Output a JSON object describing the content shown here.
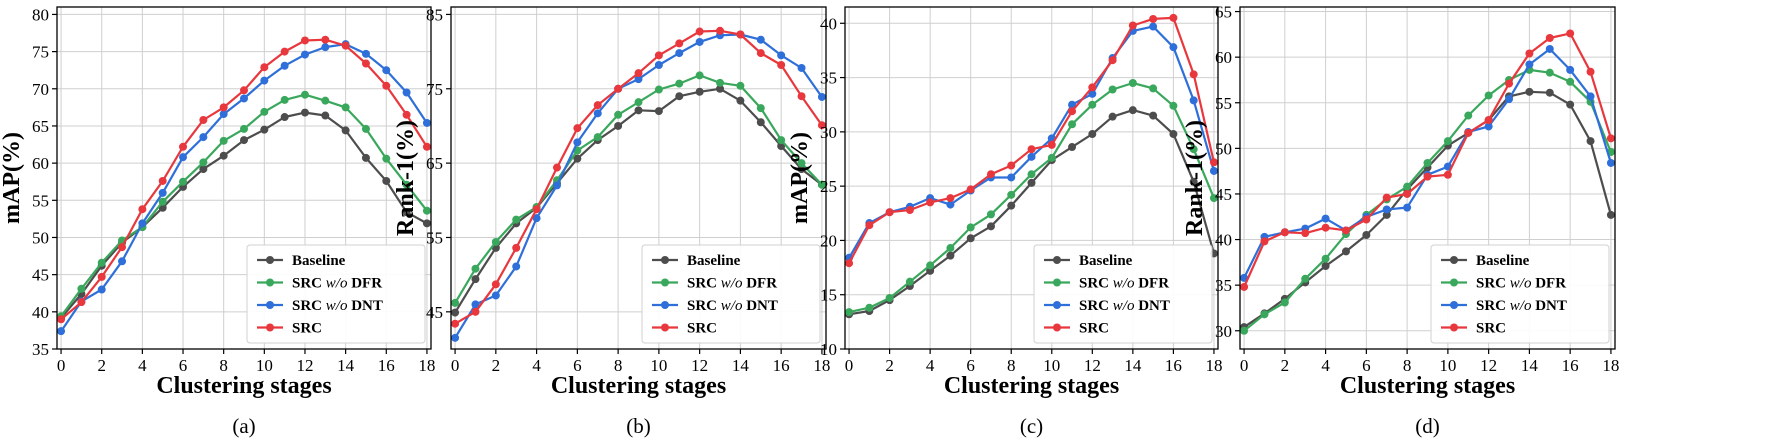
{
  "chart_data": [
    {
      "type": "line",
      "panel_label": "(a)",
      "xlabel": "Clustering stages",
      "ylabel": "mAP(%)",
      "x": [
        0,
        1,
        2,
        3,
        4,
        5,
        6,
        7,
        8,
        9,
        10,
        11,
        12,
        13,
        14,
        15,
        16,
        17,
        18
      ],
      "xticks": [
        0,
        2,
        4,
        6,
        8,
        10,
        12,
        14,
        16,
        18
      ],
      "xlim": [
        -0.2,
        18.2
      ],
      "ylim": [
        35,
        81
      ],
      "yticks": [
        35,
        40,
        45,
        50,
        55,
        60,
        65,
        70,
        75,
        80
      ],
      "grid": true,
      "legend_position": "bottom-right",
      "series": [
        {
          "name": "Baseline",
          "prefix": "Baseline",
          "italic": "",
          "suffix": "",
          "color": "#4d4d4d",
          "values": [
            39.2,
            42.4,
            46.2,
            49.3,
            51.4,
            54.0,
            56.8,
            59.2,
            61.0,
            63.1,
            64.5,
            66.2,
            66.8,
            66.4,
            64.4,
            60.7,
            57.6,
            53.4,
            51.9
          ]
        },
        {
          "name": "SRC w/o DFR",
          "prefix": "SRC ",
          "italic": "w/o",
          "suffix": " DFR",
          "color": "#3aa85c",
          "values": [
            39.4,
            43.1,
            46.6,
            49.6,
            51.4,
            54.8,
            57.5,
            60.1,
            63.0,
            64.6,
            66.9,
            68.5,
            69.2,
            68.4,
            67.5,
            64.6,
            60.6,
            57.1,
            53.6
          ]
        },
        {
          "name": "SRC w/o DNT",
          "prefix": "SRC ",
          "italic": "w/o",
          "suffix": " DNT",
          "color": "#2e6fd9",
          "values": [
            37.4,
            41.4,
            43.0,
            46.8,
            51.9,
            56.0,
            60.8,
            63.5,
            66.6,
            68.7,
            71.1,
            73.1,
            74.6,
            75.6,
            76.0,
            74.7,
            72.5,
            69.5,
            65.4
          ]
        },
        {
          "name": "SRC",
          "prefix": "SRC",
          "italic": "",
          "suffix": "",
          "color": "#e8383d",
          "values": [
            39.0,
            41.3,
            44.7,
            48.7,
            53.8,
            57.6,
            62.2,
            65.8,
            67.5,
            69.8,
            72.9,
            75.0,
            76.5,
            76.6,
            75.8,
            73.4,
            70.4,
            66.5,
            62.2
          ]
        }
      ]
    },
    {
      "type": "line",
      "panel_label": "(b)",
      "xlabel": "Clustering stages",
      "ylabel": "Rank-1(%)",
      "x": [
        0,
        1,
        2,
        3,
        4,
        5,
        6,
        7,
        8,
        9,
        10,
        11,
        12,
        13,
        14,
        15,
        16,
        17,
        18
      ],
      "xticks": [
        0,
        2,
        4,
        6,
        8,
        10,
        12,
        14,
        16,
        18
      ],
      "xlim": [
        -0.2,
        18.2
      ],
      "ylim": [
        40,
        86
      ],
      "yticks": [
        45,
        55,
        65,
        75,
        85
      ],
      "grid": true,
      "legend_position": "bottom-right",
      "series": [
        {
          "name": "Baseline",
          "prefix": "Baseline",
          "italic": "",
          "suffix": "",
          "color": "#4d4d4d",
          "values": [
            44.9,
            49.4,
            53.6,
            56.9,
            59.0,
            62.3,
            65.6,
            68.1,
            70.0,
            72.1,
            72.0,
            74.0,
            74.6,
            75.0,
            73.4,
            70.5,
            67.3,
            64.2,
            62.1
          ]
        },
        {
          "name": "SRC w/o DFR",
          "prefix": "SRC ",
          "italic": "w/o",
          "suffix": " DFR",
          "color": "#3aa85c",
          "values": [
            46.2,
            50.8,
            54.4,
            57.4,
            59.1,
            62.7,
            66.7,
            68.5,
            71.5,
            73.2,
            74.9,
            75.7,
            76.8,
            75.8,
            75.4,
            72.4,
            68.1,
            65.0,
            62.1
          ]
        },
        {
          "name": "SRC w/o DNT",
          "prefix": "SRC ",
          "italic": "w/o",
          "suffix": " DNT",
          "color": "#2e6fd9",
          "values": [
            41.5,
            46.0,
            47.2,
            51.1,
            57.6,
            62.0,
            67.8,
            71.7,
            75.0,
            76.3,
            78.2,
            79.8,
            81.3,
            82.2,
            82.3,
            81.6,
            79.5,
            77.8,
            73.9
          ]
        },
        {
          "name": "SRC",
          "prefix": "SRC",
          "italic": "",
          "suffix": "",
          "color": "#e8383d",
          "values": [
            43.4,
            45.0,
            48.7,
            53.6,
            58.8,
            64.4,
            69.7,
            72.8,
            75.0,
            77.1,
            79.5,
            81.1,
            82.7,
            82.8,
            82.3,
            79.8,
            78.2,
            74.0,
            70.1
          ]
        }
      ]
    },
    {
      "type": "line",
      "panel_label": "(c)",
      "xlabel": "Clustering stages",
      "ylabel": "mAP(%)",
      "x": [
        0,
        1,
        2,
        3,
        4,
        5,
        6,
        7,
        8,
        9,
        10,
        11,
        12,
        13,
        14,
        15,
        16,
        17,
        18
      ],
      "xticks": [
        0,
        2,
        4,
        6,
        8,
        10,
        12,
        14,
        16,
        18
      ],
      "xlim": [
        -0.2,
        18.2
      ],
      "ylim": [
        10,
        41.5
      ],
      "yticks": [
        10,
        15,
        20,
        25,
        30,
        35,
        40
      ],
      "grid": true,
      "legend_position": "bottom-right",
      "series": [
        {
          "name": "Baseline",
          "prefix": "Baseline",
          "italic": "",
          "suffix": "",
          "color": "#4d4d4d",
          "values": [
            13.2,
            13.5,
            14.5,
            15.8,
            17.2,
            18.6,
            20.2,
            21.3,
            23.2,
            25.3,
            27.4,
            28.6,
            29.8,
            31.4,
            32.0,
            31.5,
            29.8,
            25.4,
            18.8
          ]
        },
        {
          "name": "SRC w/o DFR",
          "prefix": "SRC ",
          "italic": "w/o",
          "suffix": " DFR",
          "color": "#3aa85c",
          "values": [
            13.4,
            13.8,
            14.7,
            16.2,
            17.7,
            19.3,
            21.2,
            22.4,
            24.2,
            26.1,
            27.6,
            30.7,
            32.5,
            33.9,
            34.5,
            34.0,
            32.4,
            28.4,
            23.9
          ]
        },
        {
          "name": "SRC w/o DNT",
          "prefix": "SRC ",
          "italic": "w/o",
          "suffix": " DNT",
          "color": "#2e6fd9",
          "values": [
            18.4,
            21.6,
            22.6,
            23.1,
            23.9,
            23.3,
            24.6,
            25.8,
            25.8,
            27.7,
            29.4,
            32.5,
            33.5,
            36.8,
            39.3,
            39.7,
            37.8,
            32.9,
            26.4
          ]
        },
        {
          "name": "SRC",
          "prefix": "SRC",
          "italic": "",
          "suffix": "",
          "color": "#e8383d",
          "values": [
            17.9,
            21.4,
            22.6,
            22.8,
            23.5,
            23.9,
            24.7,
            26.1,
            26.9,
            28.4,
            28.8,
            31.9,
            34.1,
            36.6,
            39.8,
            40.4,
            40.5,
            35.3,
            27.2
          ]
        }
      ]
    },
    {
      "type": "line",
      "panel_label": "(d)",
      "xlabel": "Clustering stages",
      "ylabel": "Rank-1(%)",
      "x": [
        0,
        1,
        2,
        3,
        4,
        5,
        6,
        7,
        8,
        9,
        10,
        11,
        12,
        13,
        14,
        15,
        16,
        17,
        18
      ],
      "xticks": [
        0,
        2,
        4,
        6,
        8,
        10,
        12,
        14,
        16,
        18
      ],
      "xlim": [
        -0.2,
        18.2
      ],
      "ylim": [
        28,
        65.5
      ],
      "yticks": [
        30,
        35,
        40,
        45,
        50,
        55,
        60,
        65
      ],
      "grid": true,
      "legend_position": "bottom-right",
      "series": [
        {
          "name": "Baseline",
          "prefix": "Baseline",
          "italic": "",
          "suffix": "",
          "color": "#4d4d4d",
          "values": [
            30.4,
            31.9,
            33.5,
            35.3,
            37.1,
            38.7,
            40.5,
            42.7,
            45.5,
            47.9,
            50.3,
            51.7,
            53.1,
            55.7,
            56.2,
            56.1,
            54.8,
            50.8,
            42.7
          ]
        },
        {
          "name": "SRC w/o DFR",
          "prefix": "SRC ",
          "italic": "w/o",
          "suffix": " DFR",
          "color": "#3aa85c",
          "values": [
            30.0,
            31.8,
            33.1,
            35.7,
            37.9,
            40.6,
            42.7,
            44.4,
            45.8,
            48.4,
            50.8,
            53.6,
            55.8,
            57.5,
            58.6,
            58.3,
            57.3,
            55.1,
            49.6
          ]
        },
        {
          "name": "SRC w/o DNT",
          "prefix": "SRC ",
          "italic": "w/o",
          "suffix": " DNT",
          "color": "#2e6fd9",
          "values": [
            35.8,
            40.3,
            40.8,
            41.2,
            42.3,
            41.0,
            42.5,
            43.3,
            43.5,
            47.1,
            48.0,
            51.8,
            52.4,
            55.4,
            59.2,
            60.9,
            58.6,
            55.7,
            48.4
          ]
        },
        {
          "name": "SRC",
          "prefix": "SRC",
          "italic": "",
          "suffix": "",
          "color": "#e8383d",
          "values": [
            34.8,
            39.8,
            40.8,
            40.7,
            41.3,
            41.0,
            42.2,
            44.6,
            45.0,
            46.9,
            47.1,
            51.7,
            53.1,
            57.1,
            60.4,
            62.1,
            62.6,
            58.4,
            51.1
          ]
        }
      ]
    }
  ]
}
